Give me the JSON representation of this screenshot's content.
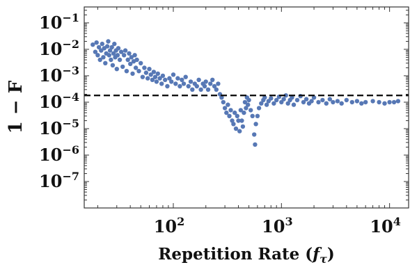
{
  "chart_data": {
    "type": "scatter",
    "xlabel": "Repetition Rate (",
    "xlabel_symbol": "f",
    "xlabel_subscript": "τ",
    "xlabel_close": ")",
    "ylabel": "1 − F",
    "x_scale": "log",
    "y_scale": "log",
    "xlim": [
      15,
      15000
    ],
    "ylim": [
      1e-08,
      0.4
    ],
    "grid": false,
    "legend": "none",
    "reference_line": {
      "y": 0.00018,
      "style": "dashed",
      "color": "#111111"
    },
    "marker_color": "#5778b5",
    "x_tick_labels": [
      {
        "value": 100,
        "base": "10",
        "exp": "2"
      },
      {
        "value": 1000,
        "base": "10",
        "exp": "3"
      },
      {
        "value": 10000,
        "base": "10",
        "exp": "4"
      }
    ],
    "y_tick_labels": [
      {
        "value": 0.1,
        "base": "10",
        "exp": "−1"
      },
      {
        "value": 0.01,
        "base": "10",
        "exp": "−2"
      },
      {
        "value": 0.001,
        "base": "10",
        "exp": "−3"
      },
      {
        "value": 0.0001,
        "base": "10",
        "exp": "−4"
      },
      {
        "value": 1e-05,
        "base": "10",
        "exp": "−5"
      },
      {
        "value": 1e-06,
        "base": "10",
        "exp": "−6"
      },
      {
        "value": 1e-07,
        "base": "10",
        "exp": "−7"
      }
    ],
    "points": [
      [
        18,
        0.015
      ],
      [
        19,
        0.008
      ],
      [
        19.5,
        0.018
      ],
      [
        20,
        0.006
      ],
      [
        20.5,
        0.012
      ],
      [
        21,
        0.004
      ],
      [
        21.5,
        0.009
      ],
      [
        22,
        0.016
      ],
      [
        22.5,
        0.005
      ],
      [
        23,
        0.011
      ],
      [
        23.5,
        0.003
      ],
      [
        24,
        0.007
      ],
      [
        24.5,
        0.013
      ],
      [
        25,
        0.02
      ],
      [
        25.5,
        0.006
      ],
      [
        26,
        0.009
      ],
      [
        26.5,
        0.004
      ],
      [
        27,
        0.012
      ],
      [
        27.5,
        0.0025
      ],
      [
        28,
        0.007
      ],
      [
        28.5,
        0.016
      ],
      [
        29,
        0.005
      ],
      [
        29.5,
        0.009
      ],
      [
        30,
        0.0018
      ],
      [
        30.5,
        0.006
      ],
      [
        31,
        0.011
      ],
      [
        32,
        0.004
      ],
      [
        33,
        0.008
      ],
      [
        34,
        0.0022
      ],
      [
        35,
        0.006
      ],
      [
        36,
        0.009
      ],
      [
        37,
        0.0015
      ],
      [
        38,
        0.004
      ],
      [
        39,
        0.007
      ],
      [
        40,
        0.0028
      ],
      [
        41,
        0.005
      ],
      [
        42,
        0.0012
      ],
      [
        43,
        0.0035
      ],
      [
        44,
        0.006
      ],
      [
        45,
        0.002
      ],
      [
        46,
        0.004
      ],
      [
        48,
        0.0015
      ],
      [
        50,
        0.003
      ],
      [
        52,
        0.0009
      ],
      [
        54,
        0.002
      ],
      [
        56,
        0.0013
      ],
      [
        58,
        0.0008
      ],
      [
        60,
        0.0018
      ],
      [
        62,
        0.0011
      ],
      [
        64,
        0.0007
      ],
      [
        66,
        0.0014
      ],
      [
        68,
        0.0009
      ],
      [
        70,
        0.0006
      ],
      [
        72,
        0.0012
      ],
      [
        75,
        0.0008
      ],
      [
        78,
        0.0005
      ],
      [
        80,
        0.001
      ],
      [
        84,
        0.0007
      ],
      [
        88,
        0.0004
      ],
      [
        92,
        0.0008
      ],
      [
        96,
        0.0006
      ],
      [
        100,
        0.0011
      ],
      [
        105,
        0.0005
      ],
      [
        110,
        0.0008
      ],
      [
        115,
        0.0004
      ],
      [
        120,
        0.0007
      ],
      [
        125,
        0.0005
      ],
      [
        130,
        0.0009
      ],
      [
        138,
        0.0004
      ],
      [
        145,
        0.0006
      ],
      [
        150,
        0.0003
      ],
      [
        158,
        0.0005
      ],
      [
        165,
        0.0004
      ],
      [
        172,
        0.0007
      ],
      [
        180,
        0.0003
      ],
      [
        188,
        0.0005
      ],
      [
        195,
        0.0004
      ],
      [
        200,
        0.0006
      ],
      [
        210,
        0.0003
      ],
      [
        220,
        0.0005
      ],
      [
        230,
        0.0007
      ],
      [
        240,
        0.0004
      ],
      [
        250,
        0.0003
      ],
      [
        260,
        0.0005
      ],
      [
        270,
        0.0002
      ],
      [
        280,
        0.00015
      ],
      [
        290,
        0.0001
      ],
      [
        300,
        6e-05
      ],
      [
        310,
        4e-05
      ],
      [
        320,
        8e-05
      ],
      [
        330,
        3e-05
      ],
      [
        340,
        5e-05
      ],
      [
        350,
        2e-05
      ],
      [
        360,
        1.5e-05
      ],
      [
        370,
        4e-05
      ],
      [
        380,
        1e-05
      ],
      [
        390,
        3e-05
      ],
      [
        400,
        2e-05
      ],
      [
        410,
        8e-06
      ],
      [
        420,
        5e-05
      ],
      [
        430,
        2e-05
      ],
      [
        440,
        1.2e-05
      ],
      [
        450,
        4e-05
      ],
      [
        460,
        0.0001
      ],
      [
        470,
        6e-05
      ],
      [
        480,
        0.00015
      ],
      [
        490,
        8e-05
      ],
      [
        500,
        0.00012
      ],
      [
        520,
        5e-05
      ],
      [
        540,
        3e-05
      ],
      [
        560,
        6e-06
      ],
      [
        570,
        2.5e-06
      ],
      [
        580,
        1.5e-05
      ],
      [
        600,
        3e-05
      ],
      [
        620,
        6e-05
      ],
      [
        650,
        9e-05
      ],
      [
        680,
        0.00012
      ],
      [
        700,
        0.00015
      ],
      [
        730,
        8e-05
      ],
      [
        760,
        0.00011
      ],
      [
        800,
        0.00014
      ],
      [
        850,
        9e-05
      ],
      [
        900,
        0.00012
      ],
      [
        950,
        0.00016
      ],
      [
        1000,
        0.0001
      ],
      [
        1050,
        0.00013
      ],
      [
        1100,
        0.00018
      ],
      [
        1150,
        9e-05
      ],
      [
        1200,
        0.00012
      ],
      [
        1250,
        0.00015
      ],
      [
        1300,
        8e-05
      ],
      [
        1400,
        0.00012
      ],
      [
        1500,
        0.00017
      ],
      [
        1600,
        0.0001
      ],
      [
        1700,
        0.00013
      ],
      [
        1800,
        9e-05
      ],
      [
        1900,
        0.00011
      ],
      [
        2000,
        0.00015
      ],
      [
        2200,
        0.0001
      ],
      [
        2400,
        0.00012
      ],
      [
        2600,
        9e-05
      ],
      [
        2800,
        0.00013
      ],
      [
        3000,
        0.0001
      ],
      [
        3300,
        0.00011
      ],
      [
        3600,
        9e-05
      ],
      [
        4000,
        0.00012
      ],
      [
        4500,
        0.0001
      ],
      [
        5000,
        0.00011
      ],
      [
        5500,
        9e-05
      ],
      [
        6000,
        0.0001
      ],
      [
        7000,
        0.00011
      ],
      [
        8000,
        0.0001
      ],
      [
        9000,
        9e-05
      ],
      [
        10000,
        0.0001
      ],
      [
        11000,
        0.0001
      ],
      [
        12000,
        0.00011
      ]
    ]
  }
}
